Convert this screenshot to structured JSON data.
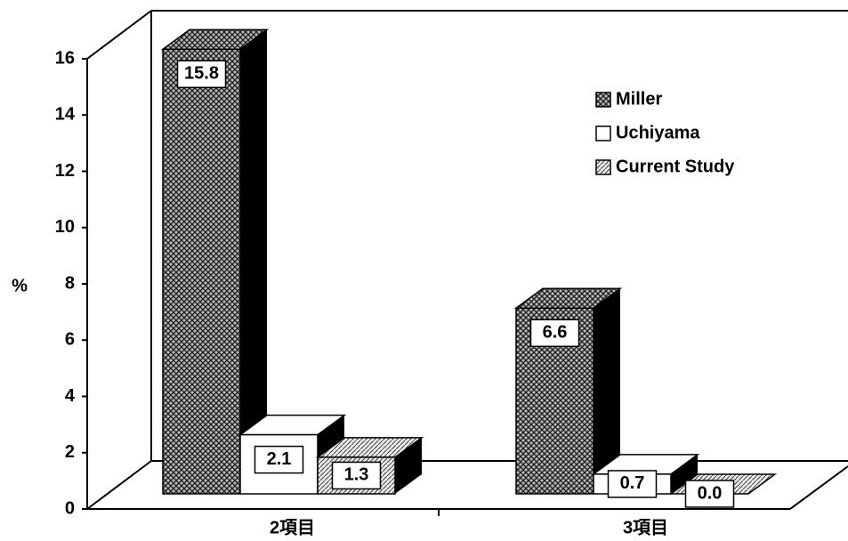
{
  "chart_data": {
    "type": "bar3d",
    "categories": [
      "2項目",
      "3項目"
    ],
    "series": [
      {
        "name": "Miller",
        "color": "#555555",
        "values": [
          15.8,
          6.6
        ]
      },
      {
        "name": "Uchiyama",
        "color": "#ffffff",
        "values": [
          2.1,
          0.7
        ]
      },
      {
        "name": "Current Study",
        "color": "#999999",
        "values": [
          1.3,
          0.0
        ],
        "value_labels": [
          "1.3",
          "0.0"
        ]
      }
    ],
    "y_label": "%",
    "ylim": [
      0,
      16
    ],
    "yticks": [
      0,
      2,
      4,
      6,
      8,
      10,
      12,
      14,
      16
    ],
    "legend": "upper right"
  }
}
